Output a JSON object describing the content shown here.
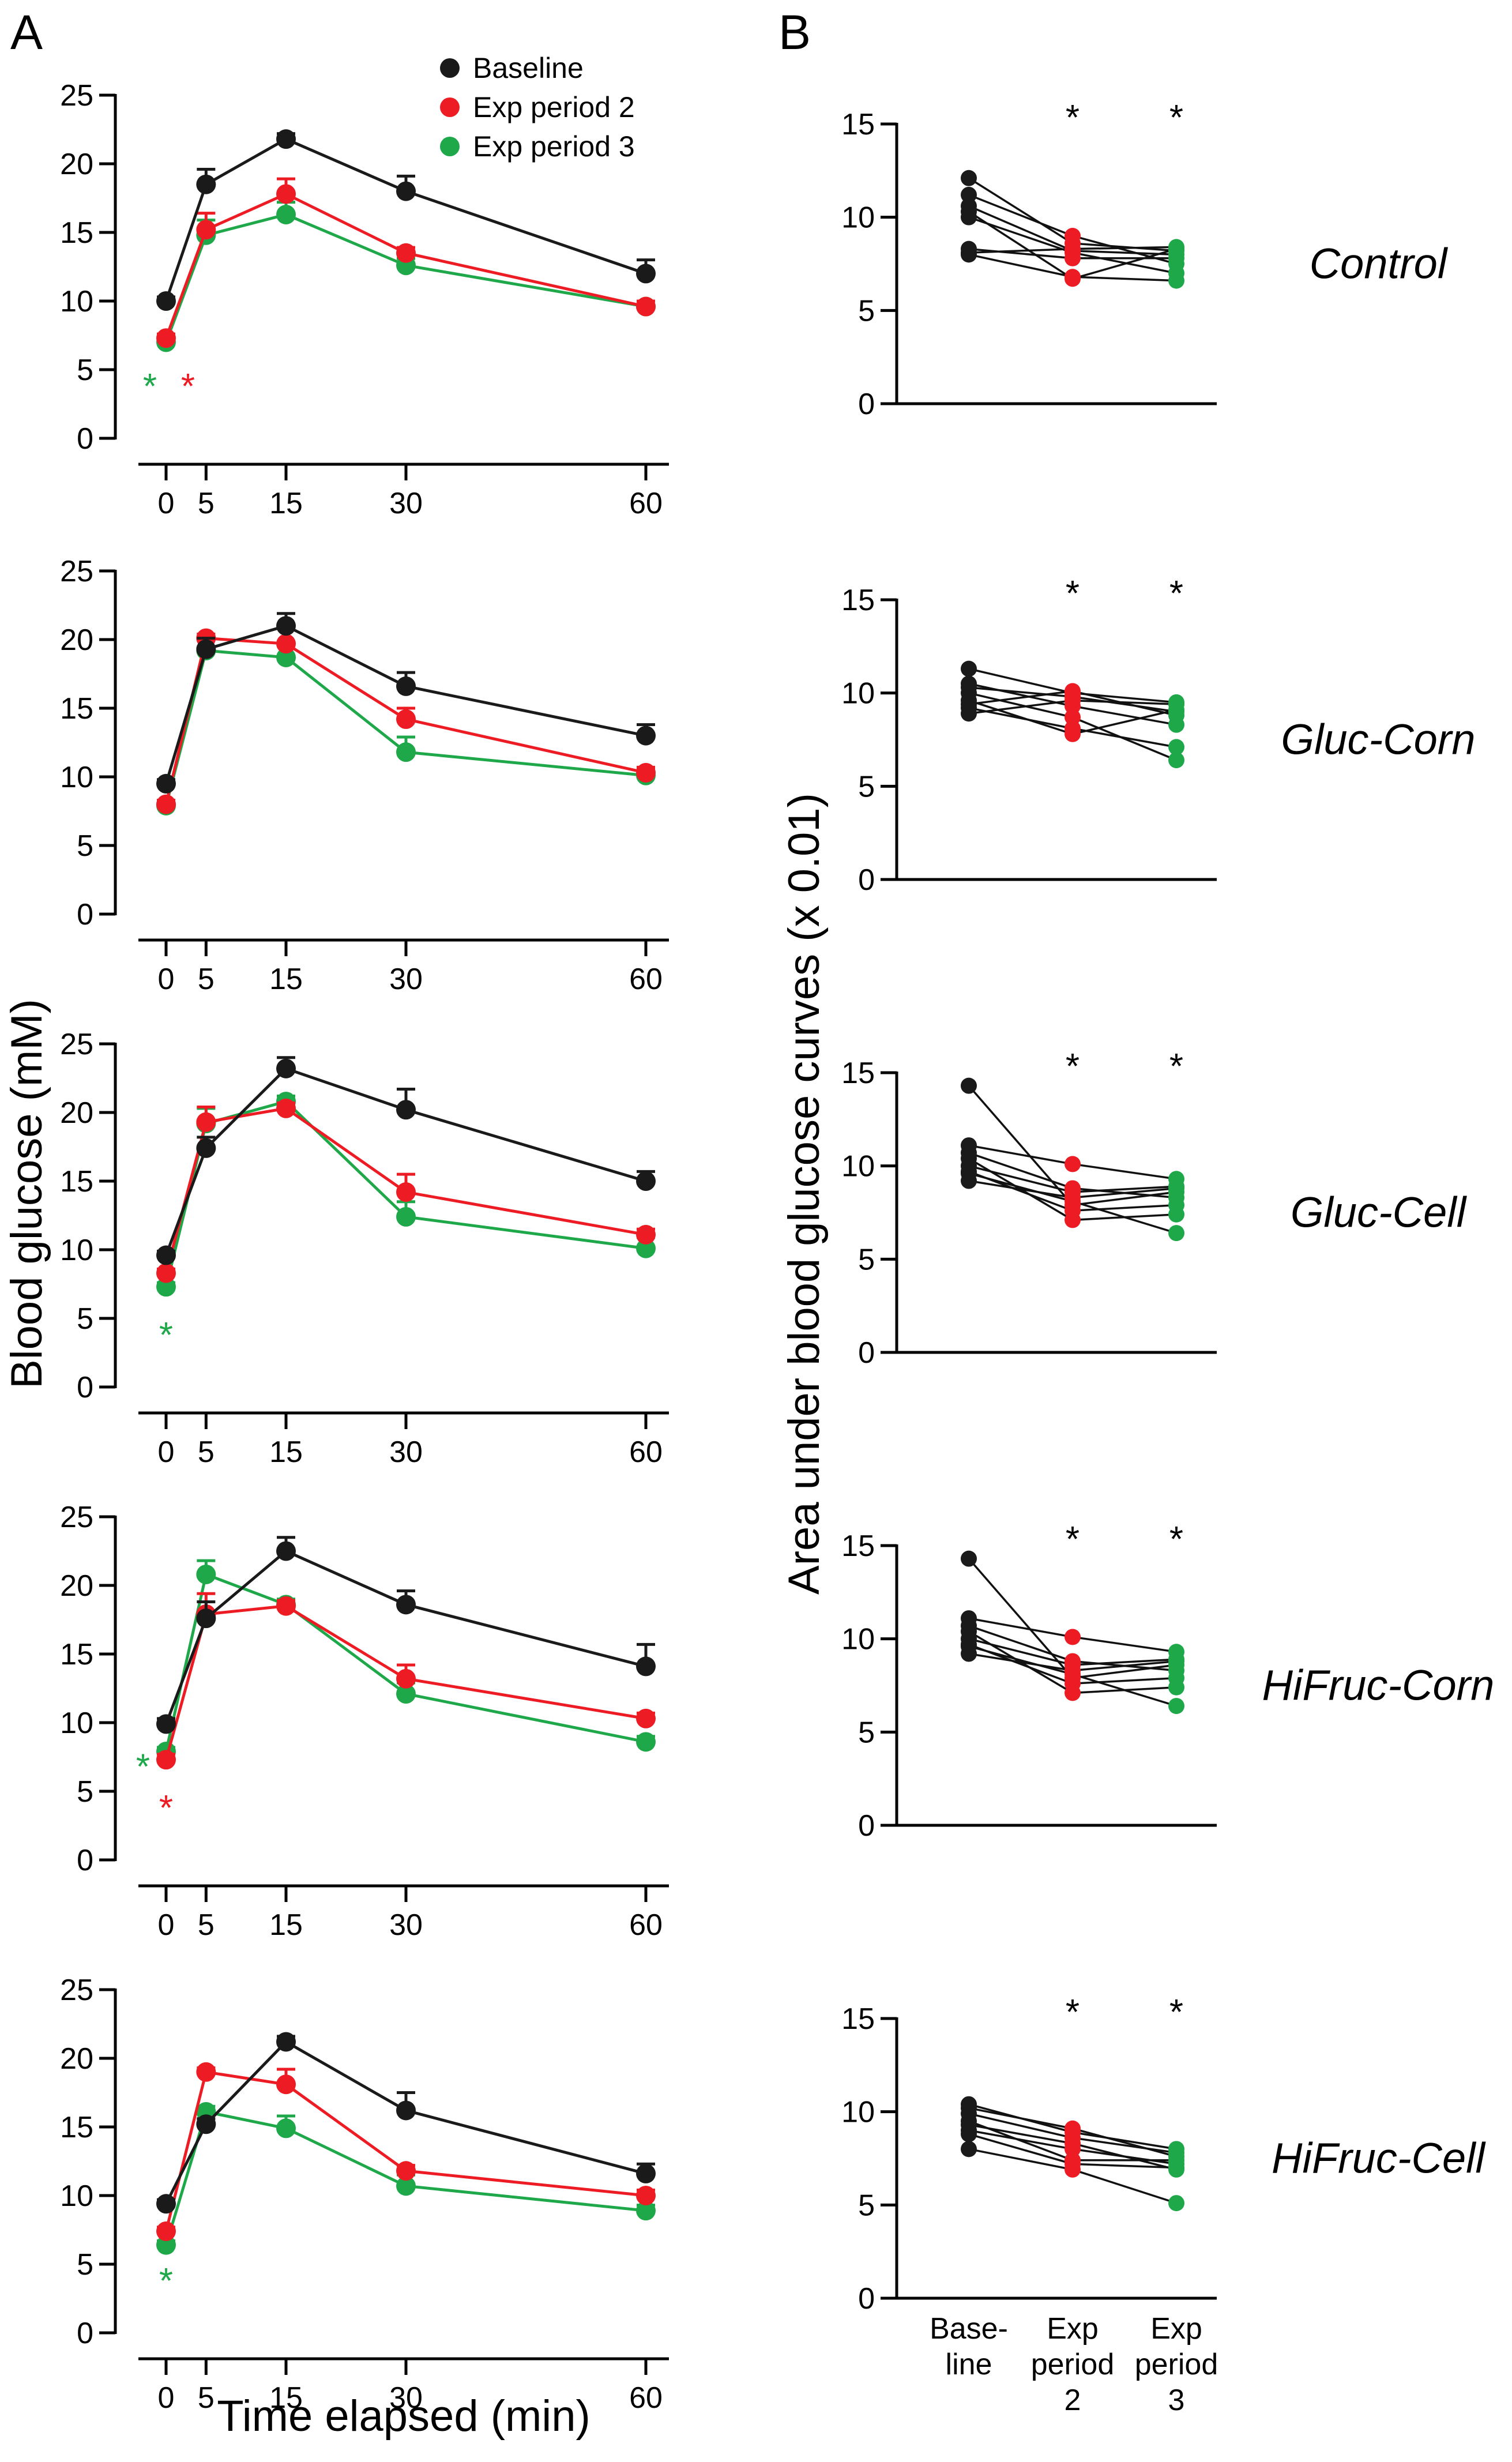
{
  "panel_labels": [
    "A",
    "B"
  ],
  "colors": {
    "baseline": "#1a1a1a",
    "exp2": "#ed1c24",
    "exp3": "#1ea84a",
    "axis": "#000000"
  },
  "legend": [
    "Baseline",
    "Exp period 2",
    "Exp period 3"
  ],
  "chart_data": [
    {
      "type": "line",
      "panel": "A",
      "title": "",
      "xlabel": "Time elapsed (min)",
      "ylabel": "Blood glucose (mM)",
      "x": [
        0,
        5,
        15,
        30,
        60
      ],
      "xticks": [
        "0",
        "5",
        "15",
        "30",
        "60"
      ],
      "ylim": [
        0,
        25
      ],
      "yticks": [
        "0",
        "5",
        "10",
        "15",
        "20",
        "25"
      ],
      "legend_position": "top-right",
      "series_names": [
        "Baseline",
        "Exp period 2",
        "Exp period 3"
      ],
      "rows": [
        {
          "group": "Control",
          "series": [
            {
              "name": "Baseline",
              "values": [
                10.0,
                18.5,
                21.8,
                18.0,
                12.0
              ],
              "errors": [
                0.3,
                1.1,
                0.4,
                1.1,
                1.0
              ]
            },
            {
              "name": "Exp period 2",
              "values": [
                7.3,
                15.2,
                17.8,
                13.5,
                9.6
              ],
              "errors": [
                0.3,
                1.2,
                1.1,
                0.4,
                0.4
              ]
            },
            {
              "name": "Exp period 3",
              "values": [
                7.0,
                14.8,
                16.3,
                12.6,
                9.6
              ],
              "errors": [
                0.3,
                1.1,
                0.9,
                0.5,
                0.4
              ]
            }
          ],
          "annotations": [
            {
              "text": "*",
              "series": "Exp period 3"
            },
            {
              "text": "*",
              "series": "Exp period 2"
            }
          ]
        },
        {
          "group": "Gluc-Corn",
          "series": [
            {
              "name": "Baseline",
              "values": [
                9.5,
                19.3,
                21.0,
                16.6,
                13.0
              ],
              "errors": [
                0.3,
                0.8,
                0.9,
                1.0,
                0.8
              ]
            },
            {
              "name": "Exp period 2",
              "values": [
                8.0,
                20.1,
                19.7,
                14.2,
                10.3
              ],
              "errors": [
                0.3,
                0.3,
                1.2,
                0.8,
                0.4
              ]
            },
            {
              "name": "Exp period 3",
              "values": [
                7.9,
                19.2,
                18.7,
                11.8,
                10.1
              ],
              "errors": [
                0.3,
                0.8,
                1.0,
                1.1,
                0.4
              ]
            }
          ],
          "annotations": []
        },
        {
          "group": "Gluc-Cell",
          "series": [
            {
              "name": "Baseline",
              "values": [
                9.6,
                17.4,
                23.2,
                20.2,
                15.0
              ],
              "errors": [
                0.3,
                0.8,
                0.8,
                1.5,
                0.7
              ]
            },
            {
              "name": "Exp period 2",
              "values": [
                8.3,
                19.3,
                20.3,
                14.2,
                11.1
              ],
              "errors": [
                0.3,
                1.1,
                0.4,
                1.3,
                0.4
              ]
            },
            {
              "name": "Exp period 3",
              "values": [
                7.3,
                19.2,
                20.8,
                12.4,
                10.1
              ],
              "errors": [
                0.3,
                1.1,
                0.4,
                1.1,
                0.8
              ]
            }
          ],
          "annotations": [
            {
              "text": "*",
              "series": "Exp period 3"
            }
          ]
        },
        {
          "group": "HiFruc-Corn",
          "series": [
            {
              "name": "Baseline",
              "values": [
                9.9,
                17.6,
                22.5,
                18.6,
                14.1
              ],
              "errors": [
                0.4,
                1.2,
                1.0,
                1.0,
                1.6
              ]
            },
            {
              "name": "Exp period 2",
              "values": [
                7.3,
                17.9,
                18.5,
                13.2,
                10.3
              ],
              "errors": [
                0.4,
                1.5,
                0.4,
                1.0,
                0.4
              ]
            },
            {
              "name": "Exp period 3",
              "values": [
                7.9,
                20.8,
                18.6,
                12.1,
                8.6
              ],
              "errors": [
                0.3,
                1.0,
                0.4,
                0.8,
                0.4
              ]
            }
          ],
          "annotations": [
            {
              "text": "*",
              "series": "Exp period 3"
            },
            {
              "text": "*",
              "series": "Exp period 2"
            }
          ]
        },
        {
          "group": "HiFruc-Cell",
          "series": [
            {
              "name": "Baseline",
              "values": [
                9.4,
                15.2,
                21.2,
                16.2,
                11.6
              ],
              "errors": [
                0.3,
                0.4,
                0.4,
                1.3,
                0.7
              ]
            },
            {
              "name": "Exp period 2",
              "values": [
                7.4,
                19.0,
                18.1,
                11.8,
                10.0
              ],
              "errors": [
                0.3,
                0.3,
                1.1,
                0.4,
                0.4
              ]
            },
            {
              "name": "Exp period 3",
              "values": [
                6.4,
                16.1,
                14.9,
                10.7,
                8.9
              ],
              "errors": [
                0.3,
                0.4,
                0.9,
                0.8,
                0.4
              ]
            }
          ],
          "annotations": [
            {
              "text": "*",
              "series": "Exp period 3"
            }
          ]
        }
      ]
    },
    {
      "type": "scatter",
      "panel": "B",
      "title": "",
      "ylabel": "Area under blood glucose curves (x 0.01)",
      "categories": [
        [
          "Base-",
          "line"
        ],
        [
          "Exp",
          "period",
          "2"
        ],
        [
          "Exp",
          "period",
          "3"
        ]
      ],
      "ylim": [
        0,
        15
      ],
      "yticks": [
        "0",
        "5",
        "10",
        "15"
      ],
      "significance": [
        "",
        "*",
        "*"
      ],
      "rows": [
        {
          "group": "Control",
          "subjects": [
            [
              12.1,
              8.6,
              8.2
            ],
            [
              11.2,
              9.0,
              7.5
            ],
            [
              10.6,
              8.2,
              8.0
            ],
            [
              10.3,
              6.7,
              8.3
            ],
            [
              10.0,
              8.1,
              7.0
            ],
            [
              8.3,
              7.8,
              7.8
            ],
            [
              8.1,
              8.3,
              8.4
            ],
            [
              8.0,
              6.8,
              6.6
            ]
          ]
        },
        {
          "group": "Gluc-Corn",
          "subjects": [
            [
              11.3,
              10.0,
              9.5
            ],
            [
              10.5,
              9.3,
              8.3
            ],
            [
              10.3,
              9.8,
              9.0
            ],
            [
              10.0,
              8.7,
              6.4
            ],
            [
              9.6,
              7.8,
              9.1
            ],
            [
              9.4,
              10.1,
              8.8
            ],
            [
              9.2,
              8.1,
              7.1
            ],
            [
              8.9,
              9.6,
              9.4
            ]
          ]
        },
        {
          "group": "Gluc-Cell",
          "subjects": [
            [
              14.3,
              7.9,
              8.6
            ],
            [
              11.1,
              10.1,
              9.3
            ],
            [
              10.7,
              8.8,
              8.3
            ],
            [
              10.4,
              7.1,
              7.4
            ],
            [
              10.0,
              8.6,
              8.9
            ],
            [
              9.7,
              7.6,
              7.9
            ],
            [
              9.2,
              8.3,
              8.8
            ],
            [
              9.6,
              8.1,
              6.4
            ]
          ]
        },
        {
          "group": "HiFruc-Corn",
          "subjects": [
            [
              14.3,
              7.9,
              8.6
            ],
            [
              11.1,
              10.1,
              9.3
            ],
            [
              10.7,
              8.8,
              8.3
            ],
            [
              10.4,
              7.1,
              7.4
            ],
            [
              10.0,
              8.6,
              8.9
            ],
            [
              9.7,
              7.6,
              7.9
            ],
            [
              9.2,
              8.3,
              8.8
            ],
            [
              9.6,
              8.1,
              6.4
            ]
          ]
        },
        {
          "group": "HiFruc-Cell",
          "subjects": [
            [
              10.4,
              8.9,
              8.0
            ],
            [
              10.2,
              9.1,
              7.6
            ],
            [
              9.9,
              8.6,
              7.8
            ],
            [
              9.5,
              7.4,
              7.4
            ],
            [
              9.3,
              8.3,
              6.9
            ],
            [
              9.0,
              8.0,
              7.2
            ],
            [
              8.8,
              7.2,
              7.0
            ],
            [
              8.0,
              6.9,
              5.1
            ]
          ]
        }
      ]
    }
  ]
}
